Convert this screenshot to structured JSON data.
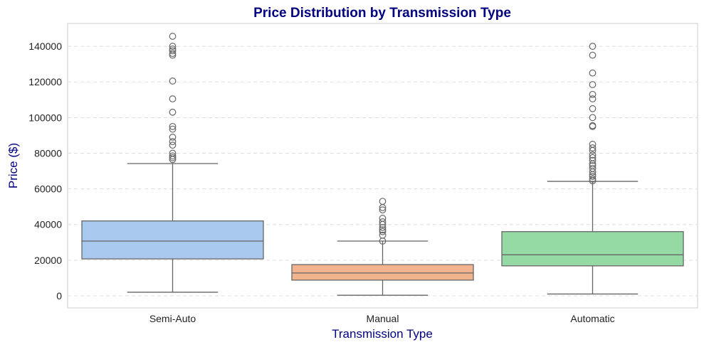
{
  "chart_data": {
    "type": "box",
    "title": "Price Distribution by Transmission Type",
    "xlabel": "Transmission Type",
    "ylabel": "Price ($)",
    "ylim": [
      -6800,
      152800
    ],
    "yticks": [
      0,
      20000,
      40000,
      60000,
      80000,
      100000,
      120000,
      140000
    ],
    "grid": "y-dashed",
    "colors": {
      "title": "#000080",
      "box_edge": "#666666",
      "grid": "#dddddd"
    },
    "categories": [
      "Semi-Auto",
      "Manual",
      "Automatic"
    ],
    "boxes": [
      {
        "name": "Semi-Auto",
        "color": "#a8c8ee",
        "whisker_low": 2000,
        "q1": 20700,
        "median": 30700,
        "q3": 42000,
        "whisker_high": 74200,
        "outliers": [
          145600,
          140000,
          138500,
          137500,
          136000,
          135000,
          120500,
          110500,
          103000,
          95000,
          93500,
          89000,
          86500,
          84500,
          80000,
          78500,
          77500,
          76500
        ]
      },
      {
        "name": "Manual",
        "color": "#f1b48e",
        "whisker_low": 300,
        "q1": 8800,
        "median": 12800,
        "q3": 17500,
        "whisker_high": 30700,
        "outliers": [
          53000,
          49500,
          48200,
          43500,
          41500,
          40000,
          38300,
          37000,
          36000,
          34000,
          30700
        ]
      },
      {
        "name": "Automatic",
        "color": "#95d9a4",
        "whisker_low": 1000,
        "q1": 16800,
        "median": 23000,
        "q3": 36000,
        "whisker_high": 64200,
        "outliers": [
          140000,
          135000,
          125000,
          118500,
          113000,
          110500,
          105000,
          100000,
          95500,
          95000,
          85000,
          83000,
          81500,
          79000,
          77500,
          76000,
          74000,
          73000,
          71500,
          69500,
          68000,
          67000,
          65500,
          64500
        ]
      }
    ]
  }
}
